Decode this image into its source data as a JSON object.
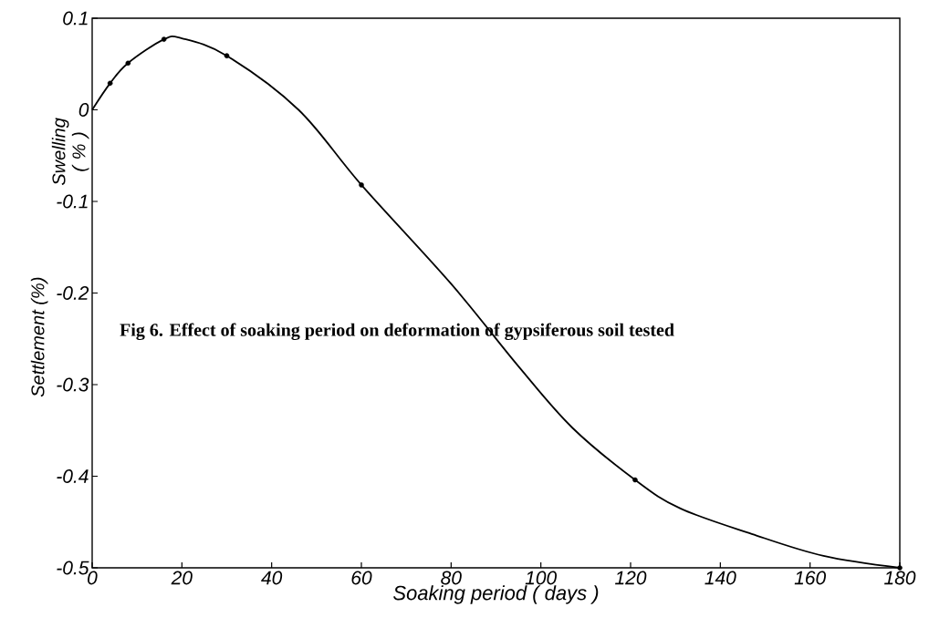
{
  "chart_data": {
    "type": "line",
    "title": "Fig 6. Effect of soaking period on deformation of gypsiferous soil tested",
    "xlabel": "Soaking period ( days )",
    "ylabel": "Settlement (%)",
    "annotations": [
      "Swelling ( % )"
    ],
    "xlim": [
      0,
      180
    ],
    "xticks": [
      0,
      20,
      40,
      60,
      80,
      100,
      120,
      140,
      160,
      180
    ],
    "ylim": [
      -0.5,
      0.1
    ],
    "yticks": [
      0.1,
      0,
      -0.1,
      -0.2,
      -0.3,
      -0.4,
      -0.5
    ],
    "series": [
      {
        "type": "line",
        "color": "#000000",
        "marker": "none",
        "line_style": "solid",
        "x": [
          0,
          4,
          8,
          16,
          20,
          30,
          46,
          60,
          80,
          95,
          107,
          121,
          131,
          147,
          163,
          180
        ],
        "values": [
          0,
          0.029,
          0.051,
          0.077,
          0.078,
          0.059,
          0,
          -0.082,
          -0.19,
          -0.28,
          -0.347,
          -0.404,
          -0.435,
          -0.463,
          -0.487,
          -0.5
        ]
      },
      {
        "type": "scatter",
        "color": "#000000",
        "marker": "circle",
        "x": [
          4,
          8,
          16,
          30,
          60,
          121,
          180
        ],
        "values": [
          0.029,
          0.051,
          0.077,
          0.059,
          -0.082,
          -0.404,
          -0.5
        ]
      }
    ]
  }
}
